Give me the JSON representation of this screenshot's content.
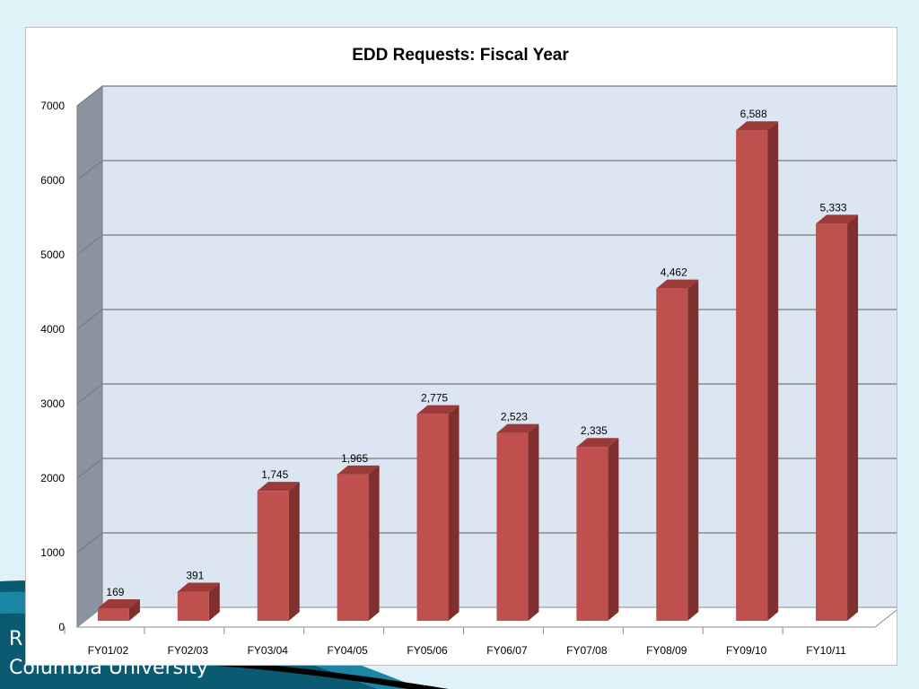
{
  "slide": {
    "footer_line_1": "R",
    "footer_line_2": "Columbia University",
    "colors": {
      "background": "#dff2f8",
      "swoosh_dark": "#0a5a72",
      "swoosh_mid": "#1b86a3",
      "black_stripe": "#000000"
    }
  },
  "chart_data": {
    "type": "bar",
    "title": "EDD Requests: Fiscal Year",
    "xlabel": "",
    "ylabel": "",
    "categories": [
      "FY01/02",
      "FY02/03",
      "FY03/04",
      "FY04/05",
      "FY05/06",
      "FY06/07",
      "FY07/08",
      "FY08/09",
      "FY09/10",
      "FY10/11"
    ],
    "values": [
      169,
      391,
      1745,
      1965,
      2775,
      2523,
      2335,
      4462,
      6588,
      5333
    ],
    "data_labels": [
      "169",
      "391",
      "1,745",
      "1,965",
      "2,775",
      "2,523",
      "2,335",
      "4,462",
      "6,588",
      "5,333"
    ],
    "ylim": [
      0,
      7000
    ],
    "yticks": [
      0,
      1000,
      2000,
      3000,
      4000,
      5000,
      6000,
      7000
    ],
    "grid": true,
    "three_d": true,
    "colors": {
      "bar_front": "#c0504d",
      "bar_side": "#7f2f2d",
      "bar_top": "#9b3b39",
      "plot_back_wall": "#dce6f2",
      "side_wall": "#8a93a0",
      "gridline": "#8c8c8c"
    }
  }
}
